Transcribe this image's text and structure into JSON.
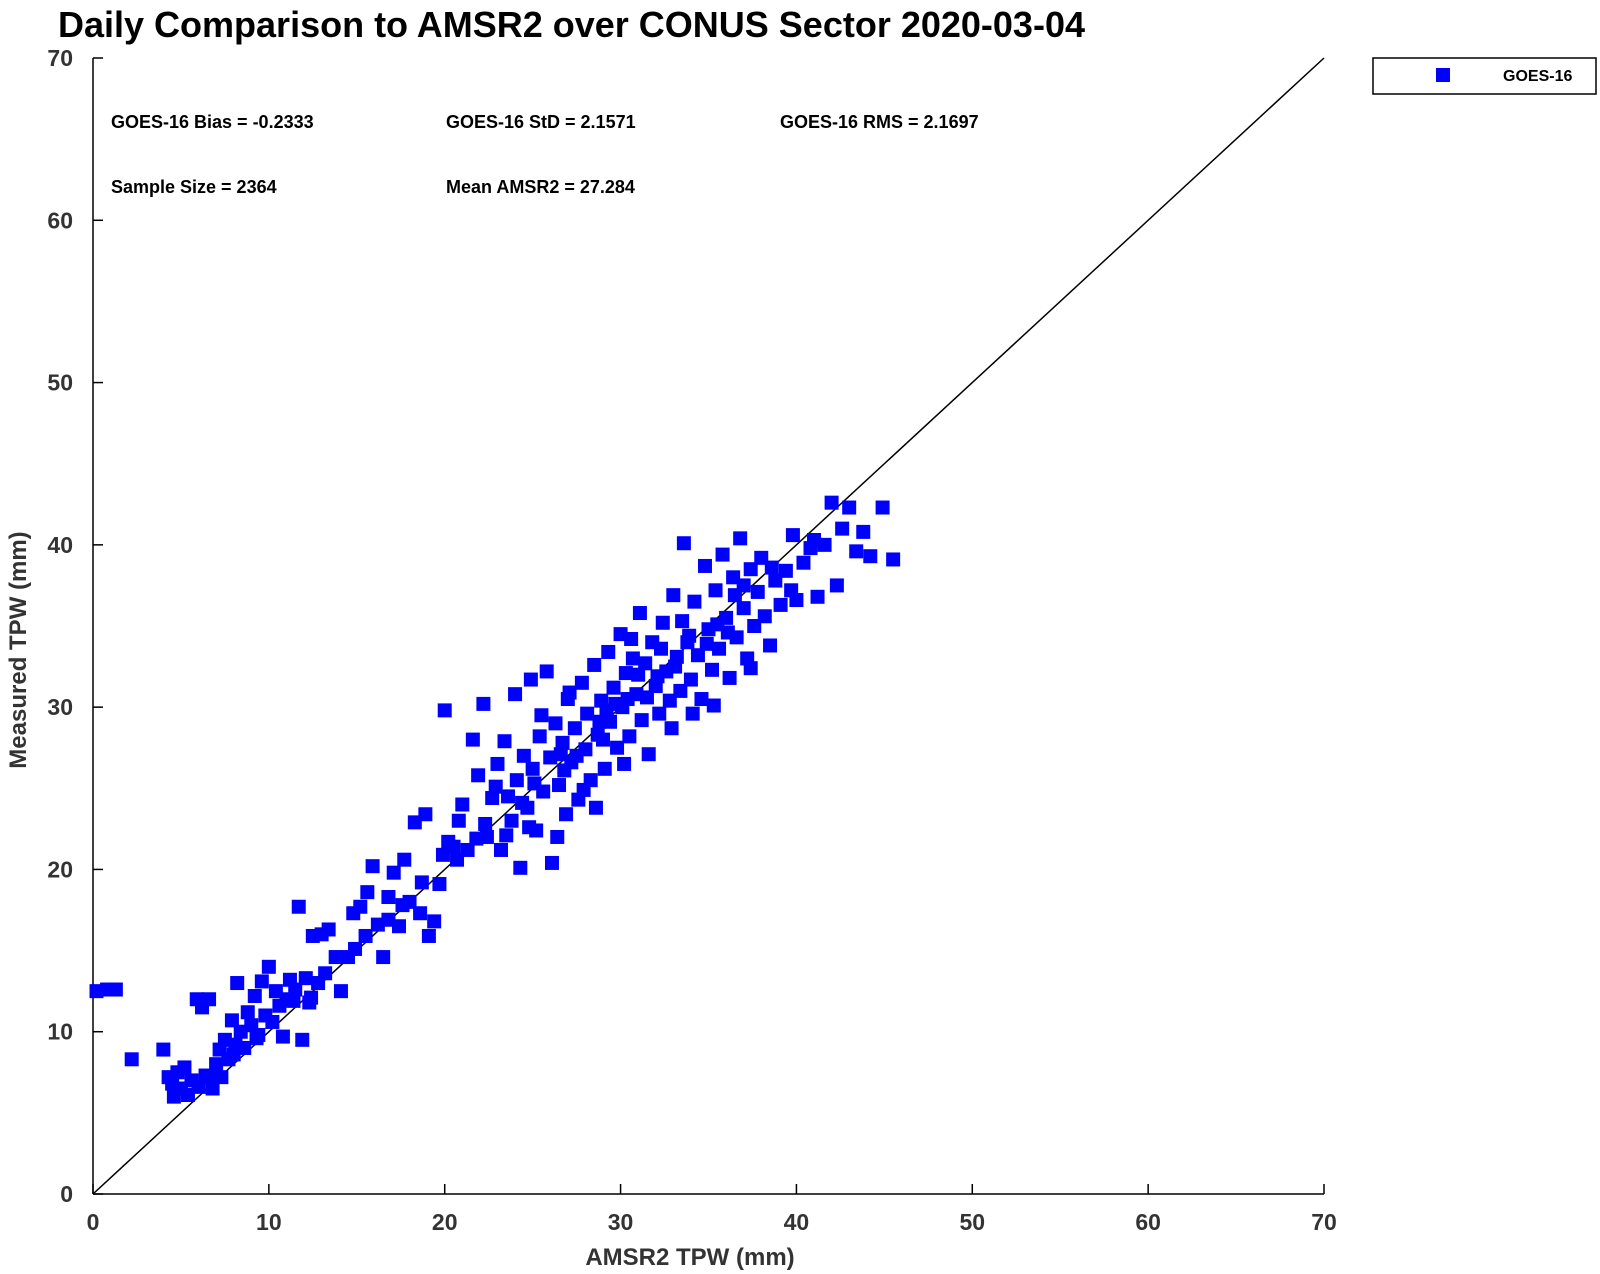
{
  "chart_data": {
    "type": "scatter",
    "title": "Daily Comparison to AMSR2 over CONUS Sector 2020-03-04",
    "xlabel": "AMSR2 TPW (mm)",
    "ylabel": "Measured TPW (mm)",
    "xlim": [
      0,
      70
    ],
    "ylim": [
      0,
      70
    ],
    "xticks": [
      "0",
      "10",
      "20",
      "30",
      "40",
      "50",
      "60",
      "70"
    ],
    "yticks": [
      "0",
      "10",
      "20",
      "30",
      "40",
      "50",
      "60",
      "70"
    ],
    "grid": false,
    "reference_line": {
      "x": [
        0,
        70
      ],
      "y": [
        0,
        70
      ],
      "color": "#000000"
    },
    "legend": {
      "position": "top-right-outside",
      "entries": [
        "GOES-16"
      ]
    },
    "annotations": {
      "bias": "GOES-16 Bias = -0.2333",
      "std": "GOES-16 StD = 2.1571",
      "rms": "GOES-16 RMS = 2.1697",
      "sample_size": "Sample Size = 2364",
      "mean": "Mean AMSR2 = 27.284"
    },
    "series": [
      {
        "name": "GOES-16",
        "color": "#0000ff",
        "marker": "square",
        "points": [
          [
            0.2,
            12.5
          ],
          [
            0.8,
            12.6
          ],
          [
            1.3,
            12.6
          ],
          [
            2.2,
            8.3
          ],
          [
            4.0,
            8.9
          ],
          [
            4.3,
            7.2
          ],
          [
            4.5,
            6.8
          ],
          [
            4.6,
            6.0
          ],
          [
            4.8,
            7.5
          ],
          [
            5.0,
            6.5
          ],
          [
            5.2,
            7.8
          ],
          [
            5.4,
            6.1
          ],
          [
            5.6,
            7.0
          ],
          [
            5.9,
            12.0
          ],
          [
            6.0,
            6.6
          ],
          [
            6.2,
            11.5
          ],
          [
            6.4,
            7.3
          ],
          [
            6.6,
            12.0
          ],
          [
            6.8,
            6.5
          ],
          [
            7.0,
            8.0
          ],
          [
            7.2,
            8.9
          ],
          [
            7.3,
            7.2
          ],
          [
            7.5,
            9.5
          ],
          [
            7.7,
            8.3
          ],
          [
            7.9,
            10.7
          ],
          [
            8.1,
            9.2
          ],
          [
            8.2,
            13.0
          ],
          [
            8.4,
            10.0
          ],
          [
            8.6,
            9.0
          ],
          [
            8.8,
            11.2
          ],
          [
            9.0,
            10.4
          ],
          [
            9.2,
            12.2
          ],
          [
            9.4,
            9.8
          ],
          [
            9.6,
            13.1
          ],
          [
            9.8,
            11.0
          ],
          [
            10.0,
            14.0
          ],
          [
            10.2,
            10.6
          ],
          [
            10.4,
            12.5
          ],
          [
            10.6,
            11.6
          ],
          [
            10.8,
            9.7
          ],
          [
            11.0,
            12.0
          ],
          [
            11.2,
            13.2
          ],
          [
            11.5,
            12.6
          ],
          [
            11.7,
            17.7
          ],
          [
            11.9,
            9.5
          ],
          [
            12.1,
            13.3
          ],
          [
            12.3,
            11.8
          ],
          [
            12.5,
            15.9
          ],
          [
            12.8,
            13.0
          ],
          [
            13.0,
            16.0
          ],
          [
            13.4,
            16.3
          ],
          [
            13.8,
            14.6
          ],
          [
            14.1,
            12.5
          ],
          [
            14.5,
            14.6
          ],
          [
            14.8,
            17.3
          ],
          [
            15.2,
            17.7
          ],
          [
            15.6,
            18.6
          ],
          [
            15.9,
            20.2
          ],
          [
            16.2,
            16.6
          ],
          [
            16.5,
            14.6
          ],
          [
            16.8,
            18.3
          ],
          [
            17.1,
            19.8
          ],
          [
            17.4,
            16.5
          ],
          [
            17.7,
            20.6
          ],
          [
            18.0,
            18.0
          ],
          [
            18.3,
            22.9
          ],
          [
            18.6,
            17.3
          ],
          [
            18.9,
            23.4
          ],
          [
            19.1,
            15.9
          ],
          [
            19.4,
            16.8
          ],
          [
            19.7,
            19.1
          ],
          [
            20.0,
            29.8
          ],
          [
            20.2,
            21.7
          ],
          [
            20.5,
            21.4
          ],
          [
            20.8,
            23.0
          ],
          [
            21.0,
            24.0
          ],
          [
            21.3,
            21.2
          ],
          [
            21.6,
            28.0
          ],
          [
            21.9,
            25.8
          ],
          [
            22.2,
            30.2
          ],
          [
            22.4,
            22.0
          ],
          [
            22.7,
            24.4
          ],
          [
            23.0,
            26.5
          ],
          [
            23.2,
            21.2
          ],
          [
            23.4,
            27.9
          ],
          [
            23.6,
            24.5
          ],
          [
            23.8,
            23.0
          ],
          [
            24.0,
            30.8
          ],
          [
            24.1,
            25.5
          ],
          [
            24.3,
            20.1
          ],
          [
            24.5,
            27.0
          ],
          [
            24.7,
            23.8
          ],
          [
            24.9,
            31.7
          ],
          [
            25.0,
            26.2
          ],
          [
            25.2,
            22.4
          ],
          [
            25.4,
            28.2
          ],
          [
            25.6,
            24.8
          ],
          [
            25.8,
            32.2
          ],
          [
            26.0,
            26.9
          ],
          [
            26.1,
            20.4
          ],
          [
            26.3,
            29.0
          ],
          [
            26.5,
            25.2
          ],
          [
            26.7,
            27.8
          ],
          [
            26.9,
            23.4
          ],
          [
            27.0,
            30.5
          ],
          [
            27.2,
            26.6
          ],
          [
            27.4,
            28.7
          ],
          [
            27.6,
            24.3
          ],
          [
            27.8,
            31.5
          ],
          [
            28.0,
            27.4
          ],
          [
            28.1,
            29.6
          ],
          [
            28.3,
            25.5
          ],
          [
            28.5,
            32.6
          ],
          [
            28.7,
            28.3
          ],
          [
            28.9,
            30.4
          ],
          [
            29.1,
            26.2
          ],
          [
            29.3,
            33.4
          ],
          [
            29.4,
            29.1
          ],
          [
            29.6,
            31.2
          ],
          [
            29.8,
            27.5
          ],
          [
            30.0,
            34.5
          ],
          [
            30.1,
            30.0
          ],
          [
            30.3,
            32.1
          ],
          [
            30.5,
            28.2
          ],
          [
            30.7,
            33.0
          ],
          [
            30.9,
            30.8
          ],
          [
            31.1,
            35.8
          ],
          [
            31.2,
            29.2
          ],
          [
            31.4,
            32.7
          ],
          [
            31.6,
            27.1
          ],
          [
            31.8,
            34.0
          ],
          [
            32.0,
            31.3
          ],
          [
            32.2,
            29.6
          ],
          [
            32.4,
            35.2
          ],
          [
            32.6,
            32.2
          ],
          [
            32.8,
            30.4
          ],
          [
            33.0,
            36.9
          ],
          [
            33.2,
            33.1
          ],
          [
            33.4,
            31.0
          ],
          [
            33.6,
            40.1
          ],
          [
            33.8,
            34.0
          ],
          [
            34.0,
            31.7
          ],
          [
            34.2,
            36.5
          ],
          [
            34.4,
            33.2
          ],
          [
            34.6,
            30.5
          ],
          [
            34.8,
            38.7
          ],
          [
            35.0,
            34.8
          ],
          [
            35.2,
            32.3
          ],
          [
            35.4,
            37.2
          ],
          [
            35.6,
            33.6
          ],
          [
            35.8,
            39.4
          ],
          [
            36.0,
            35.5
          ],
          [
            36.2,
            31.8
          ],
          [
            36.4,
            38.0
          ],
          [
            36.6,
            34.3
          ],
          [
            36.8,
            40.4
          ],
          [
            37.0,
            36.1
          ],
          [
            37.2,
            33.0
          ],
          [
            37.4,
            38.5
          ],
          [
            37.6,
            35.0
          ],
          [
            37.8,
            37.1
          ],
          [
            38.0,
            39.2
          ],
          [
            38.2,
            35.6
          ],
          [
            38.5,
            33.8
          ],
          [
            38.8,
            37.8
          ],
          [
            39.1,
            36.3
          ],
          [
            39.4,
            38.4
          ],
          [
            39.7,
            37.2
          ],
          [
            40.0,
            36.6
          ],
          [
            40.4,
            38.9
          ],
          [
            40.8,
            39.8
          ],
          [
            41.2,
            36.8
          ],
          [
            41.6,
            40.0
          ],
          [
            42.0,
            42.6
          ],
          [
            42.3,
            37.5
          ],
          [
            42.6,
            41.0
          ],
          [
            43.0,
            42.3
          ],
          [
            43.4,
            39.6
          ],
          [
            43.8,
            40.8
          ],
          [
            44.2,
            39.3
          ],
          [
            44.9,
            42.3
          ],
          [
            45.5,
            39.1
          ],
          [
            22.9,
            25.1
          ],
          [
            24.8,
            22.6
          ],
          [
            26.4,
            22.0
          ],
          [
            25.5,
            29.5
          ],
          [
            27.9,
            24.9
          ],
          [
            29.0,
            28.0
          ],
          [
            31.0,
            32.0
          ],
          [
            30.2,
            26.5
          ],
          [
            32.9,
            28.7
          ],
          [
            33.5,
            35.3
          ],
          [
            34.1,
            29.6
          ],
          [
            36.1,
            34.6
          ],
          [
            35.3,
            30.1
          ],
          [
            37.4,
            32.4
          ],
          [
            28.6,
            23.8
          ],
          [
            27.1,
            30.9
          ],
          [
            30.6,
            34.2
          ],
          [
            32.3,
            33.6
          ],
          [
            29.7,
            30.2
          ],
          [
            28.8,
            29.1
          ],
          [
            26.8,
            26.1
          ],
          [
            31.5,
            30.6
          ],
          [
            33.1,
            32.5
          ],
          [
            34.9,
            33.9
          ],
          [
            36.5,
            36.9
          ],
          [
            24.4,
            24.1
          ],
          [
            23.5,
            22.1
          ],
          [
            21.8,
            21.9
          ],
          [
            19.9,
            20.9
          ],
          [
            17.6,
            17.8
          ],
          [
            15.5,
            15.9
          ],
          [
            13.2,
            13.6
          ],
          [
            11.4,
            11.9
          ],
          [
            9.3,
            9.6
          ],
          [
            8.0,
            8.6
          ],
          [
            6.6,
            7.2
          ],
          [
            12.4,
            12.1
          ],
          [
            14.9,
            15.1
          ],
          [
            16.8,
            16.9
          ],
          [
            18.7,
            19.2
          ],
          [
            20.7,
            20.6
          ],
          [
            22.3,
            22.8
          ],
          [
            25.1,
            25.3
          ],
          [
            26.6,
            27.1
          ],
          [
            27.5,
            27.0
          ],
          [
            29.2,
            29.8
          ],
          [
            30.4,
            30.5
          ],
          [
            32.1,
            31.9
          ],
          [
            33.9,
            34.4
          ],
          [
            35.5,
            35.1
          ],
          [
            37.0,
            37.5
          ],
          [
            38.6,
            38.6
          ],
          [
            39.8,
            40.6
          ],
          [
            41.0,
            40.3
          ]
        ]
      }
    ]
  }
}
